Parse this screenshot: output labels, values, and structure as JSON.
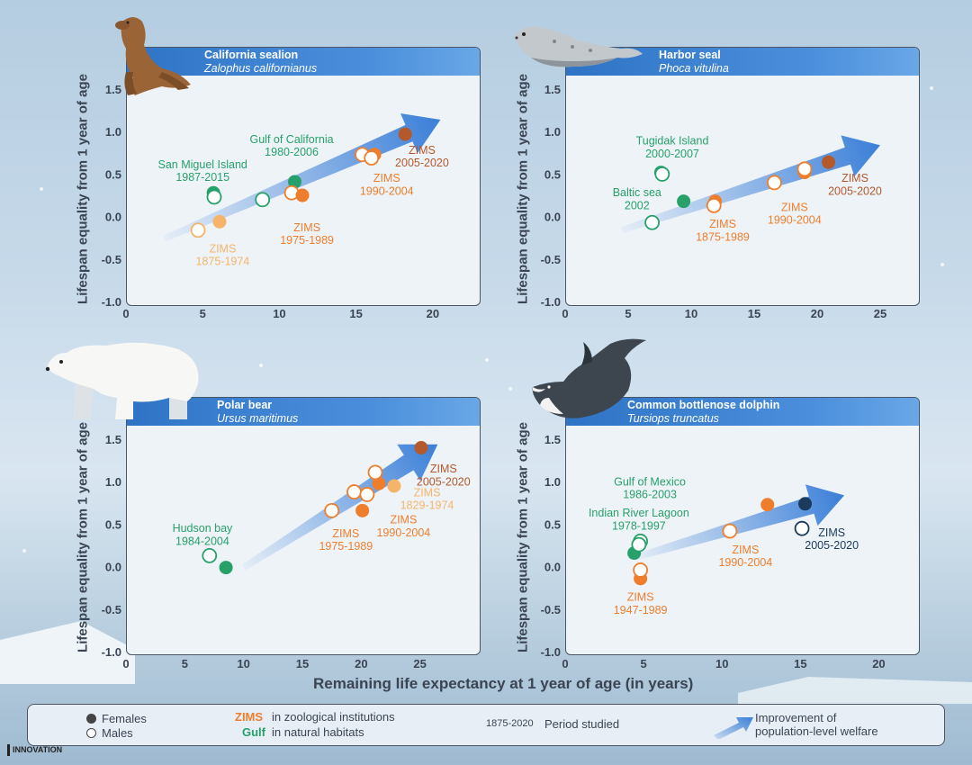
{
  "colors": {
    "females_zims_old": "#f6b46b",
    "females_zims_mid": "#ef7e2c",
    "females_zims_recent": "#b4592c",
    "females_natural": "#27a06a",
    "females_dark": "#1b3a5c",
    "arrow": "#3b7fd8",
    "axis": "#3a4452"
  },
  "axis_title_y": "Lifespan equality from 1 year of age",
  "axis_title_x": "Remaining life expectancy at 1 year of age (in years)",
  "chart_data": [
    {
      "type": "scatter",
      "species": "California sealion",
      "latin": "Zalophus californianus",
      "animal_icon": "sealion",
      "xlim": [
        0,
        23
      ],
      "ylim": [
        -1.0,
        1.5
      ],
      "xticks": [
        0,
        5,
        10,
        15,
        20
      ],
      "yticks": [
        -1.0,
        -0.5,
        0.0,
        0.5,
        1.0,
        1.5
      ],
      "ylabel": "Lifespan equality from 1 year of age",
      "arrow": {
        "from": [
          2.5,
          -0.25
        ],
        "to": [
          20.5,
          1.15
        ]
      },
      "series": [
        {
          "name": "San Miguel Island 1987-2015",
          "points": [
            {
              "x": 5.7,
              "y": 0.29,
              "sex": "female",
              "color": "#27a06a"
            },
            {
              "x": 5.75,
              "y": 0.24,
              "sex": "male",
              "color": "#27a06a"
            }
          ]
        },
        {
          "name": "Gulf of California 1980-2006",
          "points": [
            {
              "x": 8.9,
              "y": 0.21,
              "sex": "male",
              "color": "#27a06a"
            },
            {
              "x": 11.0,
              "y": 0.42,
              "sex": "female",
              "color": "#27a06a"
            }
          ]
        },
        {
          "name": "ZIMS 1875-1974",
          "points": [
            {
              "x": 4.7,
              "y": -0.15,
              "sex": "male",
              "color": "#f6b46b"
            },
            {
              "x": 6.1,
              "y": -0.05,
              "sex": "female",
              "color": "#f6b46b"
            }
          ]
        },
        {
          "name": "ZIMS 1975-1989",
          "points": [
            {
              "x": 10.8,
              "y": 0.29,
              "sex": "male",
              "color": "#ef7e2c"
            },
            {
              "x": 11.5,
              "y": 0.26,
              "sex": "female",
              "color": "#ef7e2c"
            }
          ]
        },
        {
          "name": "ZIMS 1990-2004",
          "points": [
            {
              "x": 15.4,
              "y": 0.74,
              "sex": "male",
              "color": "#ef7e2c"
            },
            {
              "x": 16.2,
              "y": 0.74,
              "sex": "female",
              "color": "#ef7e2c"
            },
            {
              "x": 16.0,
              "y": 0.7,
              "sex": "male",
              "color": "#ef7e2c"
            }
          ]
        },
        {
          "name": "ZIMS 2005-2020",
          "points": [
            {
              "x": 18.2,
              "y": 0.98,
              "sex": "female",
              "color": "#b4592c"
            }
          ]
        }
      ],
      "annotations": [
        {
          "text": "San Miguel Island",
          "x": 5.0,
          "y": 0.62,
          "color": "#27a06a"
        },
        {
          "text": "1987-2015",
          "x": 5.0,
          "y": 0.47,
          "color": "#27a06a"
        },
        {
          "text": "Gulf of California",
          "x": 10.8,
          "y": 0.92,
          "color": "#27a06a"
        },
        {
          "text": "1980-2006",
          "x": 10.8,
          "y": 0.77,
          "color": "#27a06a"
        },
        {
          "text": "ZIMS",
          "x": 6.3,
          "y": -0.37,
          "color": "#f6b46b"
        },
        {
          "text": "1875-1974",
          "x": 6.3,
          "y": -0.52,
          "color": "#f6b46b"
        },
        {
          "text": "ZIMS",
          "x": 11.8,
          "y": -0.12,
          "color": "#ef7e2c"
        },
        {
          "text": "1975-1989",
          "x": 11.8,
          "y": -0.27,
          "color": "#ef7e2c"
        },
        {
          "text": "ZIMS",
          "x": 17.0,
          "y": 0.46,
          "color": "#ef7e2c"
        },
        {
          "text": "1990-2004",
          "x": 17.0,
          "y": 0.31,
          "color": "#ef7e2c"
        },
        {
          "text": "ZIMS",
          "x": 19.3,
          "y": 0.79,
          "color": "#b4592c"
        },
        {
          "text": "2005-2020",
          "x": 19.3,
          "y": 0.64,
          "color": "#b4592c"
        }
      ]
    },
    {
      "type": "scatter",
      "species": "Harbor seal",
      "latin": "Phoca vitulina",
      "animal_icon": "harbor-seal",
      "xlim": [
        0,
        28
      ],
      "ylim": [
        -1.0,
        1.5
      ],
      "xticks": [
        0,
        5,
        10,
        15,
        20,
        25
      ],
      "yticks": [
        -1.0,
        -0.5,
        0.0,
        0.5,
        1.0,
        1.5
      ],
      "ylabel": "Lifespan equality from 1 year of age",
      "arrow": {
        "from": [
          4.5,
          -0.15
        ],
        "to": [
          25,
          0.85
        ]
      },
      "series": [
        {
          "name": "Tugidak Island 2000-2007",
          "points": [
            {
              "x": 7.6,
              "y": 0.53,
              "sex": "female",
              "color": "#27a06a"
            },
            {
              "x": 7.7,
              "y": 0.51,
              "sex": "male",
              "color": "#27a06a"
            }
          ]
        },
        {
          "name": "Baltic sea 2002",
          "points": [
            {
              "x": 6.9,
              "y": -0.06,
              "sex": "male",
              "color": "#27a06a"
            },
            {
              "x": 9.4,
              "y": 0.19,
              "sex": "female",
              "color": "#27a06a"
            }
          ]
        },
        {
          "name": "ZIMS 1875-1989",
          "points": [
            {
              "x": 11.9,
              "y": 0.19,
              "sex": "female",
              "color": "#ef7e2c"
            },
            {
              "x": 11.8,
              "y": 0.14,
              "sex": "male",
              "color": "#ef7e2c"
            }
          ]
        },
        {
          "name": "ZIMS 1990-2004",
          "points": [
            {
              "x": 16.6,
              "y": 0.41,
              "sex": "male",
              "color": "#ef7e2c"
            },
            {
              "x": 19.0,
              "y": 0.53,
              "sex": "female",
              "color": "#ef7e2c"
            },
            {
              "x": 19.0,
              "y": 0.57,
              "sex": "male",
              "color": "#ef7e2c"
            }
          ]
        },
        {
          "name": "ZIMS 2005-2020",
          "points": [
            {
              "x": 20.9,
              "y": 0.65,
              "sex": "female",
              "color": "#b4592c"
            }
          ]
        }
      ],
      "annotations": [
        {
          "text": "Tugidak Island",
          "x": 8.5,
          "y": 0.9,
          "color": "#27a06a"
        },
        {
          "text": "2000-2007",
          "x": 8.5,
          "y": 0.75,
          "color": "#27a06a"
        },
        {
          "text": "Baltic sea",
          "x": 5.7,
          "y": 0.29,
          "color": "#27a06a"
        },
        {
          "text": "2002",
          "x": 5.7,
          "y": 0.14,
          "color": "#27a06a"
        },
        {
          "text": "ZIMS",
          "x": 12.5,
          "y": -0.08,
          "color": "#ef7e2c"
        },
        {
          "text": "1875-1989",
          "x": 12.5,
          "y": -0.23,
          "color": "#ef7e2c"
        },
        {
          "text": "ZIMS",
          "x": 18.2,
          "y": 0.12,
          "color": "#ef7e2c"
        },
        {
          "text": "1990-2004",
          "x": 18.2,
          "y": -0.03,
          "color": "#ef7e2c"
        },
        {
          "text": "ZIMS",
          "x": 23.0,
          "y": 0.46,
          "color": "#b4592c"
        },
        {
          "text": "2005-2020",
          "x": 23.0,
          "y": 0.31,
          "color": "#b4592c"
        }
      ]
    },
    {
      "type": "scatter",
      "species": "Polar bear",
      "latin": "Ursus maritimus",
      "animal_icon": "polar-bear",
      "xlim": [
        0,
        30
      ],
      "ylim": [
        -1.0,
        1.5
      ],
      "xticks": [
        0,
        5,
        10,
        15,
        20,
        25
      ],
      "yticks": [
        -1.0,
        -0.5,
        0.0,
        0.5,
        1.0,
        1.5
      ],
      "ylabel": "Lifespan equality from 1 year of age",
      "arrow": {
        "from": [
          10,
          0.0
        ],
        "to": [
          26.5,
          1.45
        ]
      },
      "series": [
        {
          "name": "Hudson bay 1984-2004",
          "points": [
            {
              "x": 7.1,
              "y": 0.14,
              "sex": "male",
              "color": "#27a06a"
            },
            {
              "x": 8.5,
              "y": 0.0,
              "sex": "female",
              "color": "#27a06a"
            }
          ]
        },
        {
          "name": "ZIMS 1829-1974",
          "points": [
            {
              "x": 22.8,
              "y": 0.96,
              "sex": "female",
              "color": "#f6b46b"
            }
          ]
        },
        {
          "name": "ZIMS 1975-1989",
          "points": [
            {
              "x": 17.5,
              "y": 0.67,
              "sex": "male",
              "color": "#ef7e2c"
            },
            {
              "x": 19.4,
              "y": 0.89,
              "sex": "male",
              "color": "#ef7e2c"
            },
            {
              "x": 20.1,
              "y": 0.67,
              "sex": "female",
              "color": "#ef7e2c"
            }
          ]
        },
        {
          "name": "ZIMS 1990-2004",
          "points": [
            {
              "x": 20.5,
              "y": 0.86,
              "sex": "male",
              "color": "#ef7e2c"
            },
            {
              "x": 21.5,
              "y": 0.99,
              "sex": "female",
              "color": "#ef7e2c"
            },
            {
              "x": 21.2,
              "y": 1.12,
              "sex": "male",
              "color": "#ef7e2c"
            }
          ]
        },
        {
          "name": "ZIMS 2005-2020",
          "points": [
            {
              "x": 25.1,
              "y": 1.41,
              "sex": "female",
              "color": "#b4592c"
            }
          ]
        }
      ],
      "annotations": [
        {
          "text": "Hudson bay",
          "x": 6.5,
          "y": 0.46,
          "color": "#27a06a"
        },
        {
          "text": "1984-2004",
          "x": 6.5,
          "y": 0.31,
          "color": "#27a06a"
        },
        {
          "text": "ZIMS",
          "x": 25.6,
          "y": 0.88,
          "color": "#f6b46b"
        },
        {
          "text": "1829-1974",
          "x": 25.6,
          "y": 0.73,
          "color": "#f6b46b"
        },
        {
          "text": "ZIMS",
          "x": 18.7,
          "y": 0.4,
          "color": "#ef7e2c"
        },
        {
          "text": "1975-1989",
          "x": 18.7,
          "y": 0.25,
          "color": "#ef7e2c"
        },
        {
          "text": "ZIMS",
          "x": 23.6,
          "y": 0.56,
          "color": "#ef7e2c"
        },
        {
          "text": "1990-2004",
          "x": 23.6,
          "y": 0.41,
          "color": "#ef7e2c"
        },
        {
          "text": "ZIMS",
          "x": 27.0,
          "y": 1.16,
          "color": "#b4592c"
        },
        {
          "text": "2005-2020",
          "x": 27.0,
          "y": 1.01,
          "color": "#b4592c"
        }
      ]
    },
    {
      "type": "scatter",
      "species": "Common bottlenose dolphin",
      "latin": "Tursiops truncatus",
      "animal_icon": "orca",
      "xlim": [
        0,
        22.5
      ],
      "ylim": [
        -1.0,
        1.5
      ],
      "xticks": [
        0,
        5,
        10,
        15,
        20
      ],
      "yticks": [
        -1.0,
        -0.5,
        0.0,
        0.5,
        1.0,
        1.5
      ],
      "ylabel": "Lifespan equality from 1 year of age",
      "arrow": {
        "from": [
          4.5,
          0.12
        ],
        "to": [
          17.8,
          0.85
        ]
      },
      "series": [
        {
          "name": "Gulf of Mexico 1986-2003",
          "points": [
            {
              "x": 4.4,
              "y": 0.17,
              "sex": "female",
              "color": "#27a06a"
            }
          ]
        },
        {
          "name": "Indian River Lagoon 1978-1997",
          "points": [
            {
              "x": 4.8,
              "y": 0.31,
              "sex": "male",
              "color": "#27a06a"
            },
            {
              "x": 4.7,
              "y": 0.27,
              "sex": "male",
              "color": "#27a06a"
            }
          ]
        },
        {
          "name": "ZIMS 1947-1989",
          "points": [
            {
              "x": 4.8,
              "y": -0.13,
              "sex": "female",
              "color": "#ef7e2c"
            },
            {
              "x": 4.8,
              "y": -0.03,
              "sex": "male",
              "color": "#ef7e2c"
            }
          ]
        },
        {
          "name": "ZIMS 1990-2004",
          "points": [
            {
              "x": 10.5,
              "y": 0.43,
              "sex": "male",
              "color": "#ef7e2c"
            },
            {
              "x": 12.9,
              "y": 0.74,
              "sex": "female",
              "color": "#ef7e2c"
            }
          ]
        },
        {
          "name": "ZIMS 2005-2020",
          "points": [
            {
              "x": 15.3,
              "y": 0.75,
              "sex": "female",
              "color": "#1b3a5c"
            },
            {
              "x": 15.1,
              "y": 0.46,
              "sex": "male",
              "color": "#1b3a5c"
            }
          ]
        }
      ],
      "annotations": [
        {
          "text": "Gulf of Mexico",
          "x": 5.4,
          "y": 1.01,
          "color": "#27a06a"
        },
        {
          "text": "1986-2003",
          "x": 5.4,
          "y": 0.86,
          "color": "#27a06a"
        },
        {
          "text": "Indian River Lagoon",
          "x": 4.7,
          "y": 0.64,
          "color": "#27a06a"
        },
        {
          "text": "1978-1997",
          "x": 4.7,
          "y": 0.49,
          "color": "#27a06a"
        },
        {
          "text": "ZIMS",
          "x": 4.8,
          "y": -0.35,
          "color": "#ef7e2c"
        },
        {
          "text": "1947-1989",
          "x": 4.8,
          "y": -0.5,
          "color": "#ef7e2c"
        },
        {
          "text": "ZIMS",
          "x": 11.5,
          "y": 0.21,
          "color": "#ef7e2c"
        },
        {
          "text": "1990-2004",
          "x": 11.5,
          "y": 0.06,
          "color": "#ef7e2c"
        },
        {
          "text": "ZIMS",
          "x": 17.0,
          "y": 0.41,
          "color": "#1b3a5c"
        },
        {
          "text": "2005-2020",
          "x": 17.0,
          "y": 0.26,
          "color": "#1b3a5c"
        }
      ]
    }
  ],
  "legend": {
    "females": "Females",
    "males": "Males",
    "zims_keyword": "ZIMS",
    "zims_desc": "in zoological institutions",
    "gulf_keyword": "Gulf",
    "gulf_desc": "in natural habitats",
    "period_example": "1875-2020",
    "period_desc": "Period studied",
    "arrow_desc_1": "Improvement of",
    "arrow_desc_2": "population-level welfare"
  },
  "brand": "INNOVATION"
}
